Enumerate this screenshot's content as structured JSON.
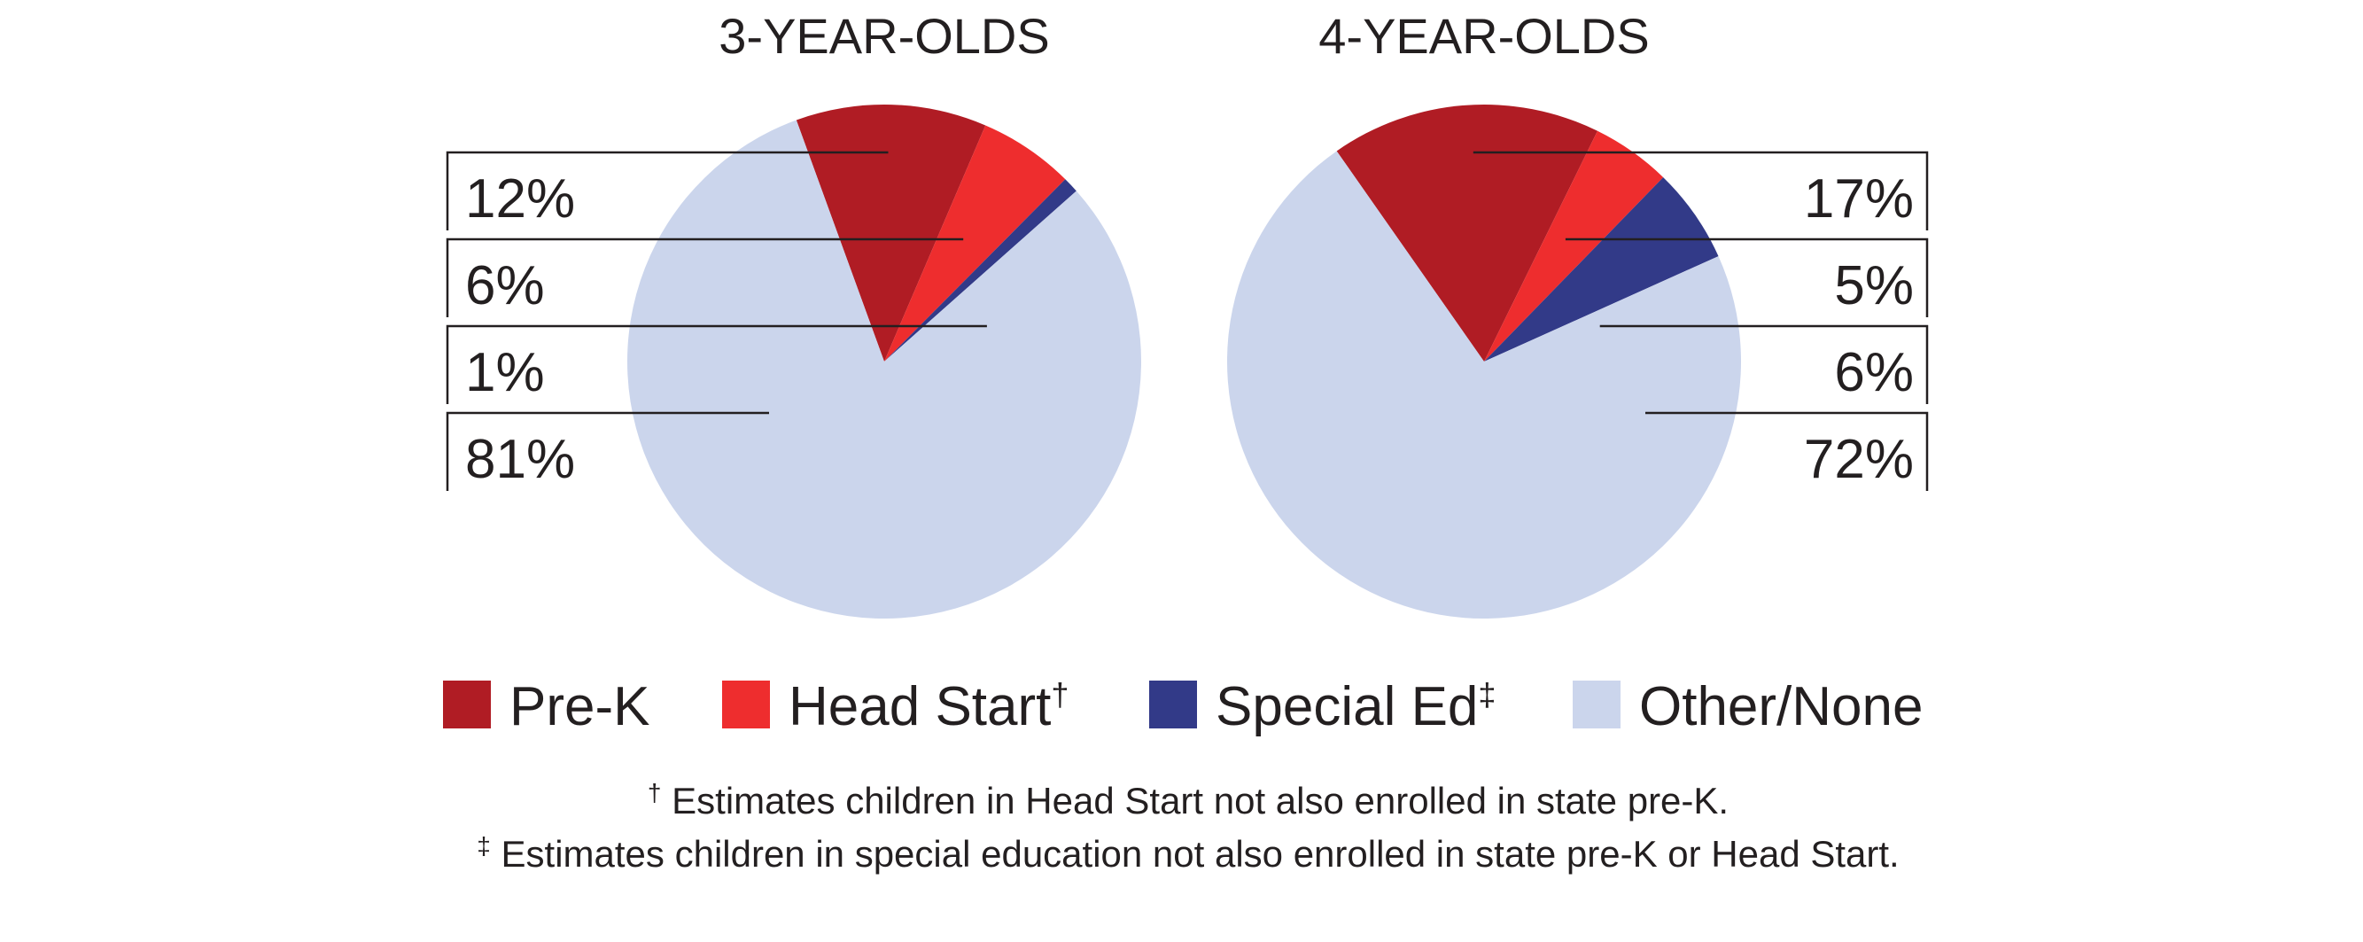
{
  "chart_data": [
    {
      "type": "pie",
      "title": "3-YEAR-OLDS",
      "categories": [
        "Pre-K",
        "Head Start",
        "Special Ed",
        "Other/None"
      ],
      "values": [
        12,
        6,
        1,
        81
      ],
      "labels": [
        "12%",
        "6%",
        "1%",
        "81%"
      ]
    },
    {
      "type": "pie",
      "title": "4-YEAR-OLDS",
      "categories": [
        "Pre-K",
        "Head Start",
        "Special Ed",
        "Other/None"
      ],
      "values": [
        17,
        5,
        6,
        72
      ],
      "labels": [
        "17%",
        "5%",
        "6%",
        "72%"
      ]
    }
  ],
  "legend": {
    "placement": "bottom",
    "items": [
      {
        "label": "Pre-K",
        "mark": "",
        "color": "#b01c24"
      },
      {
        "label": "Head Start",
        "mark": "†",
        "color": "#ee2d2e"
      },
      {
        "label": "Special Ed",
        "mark": "‡",
        "color": "#323a88"
      },
      {
        "label": "Other/None",
        "mark": "",
        "color": "#cbd5ec"
      }
    ]
  },
  "footnotes": [
    {
      "mark": "†",
      "text": "Estimates children in Head Start not also enrolled in state pre-K."
    },
    {
      "mark": "‡",
      "text": "Estimates children in special education not also enrolled in state pre-K or Head Start."
    }
  ]
}
